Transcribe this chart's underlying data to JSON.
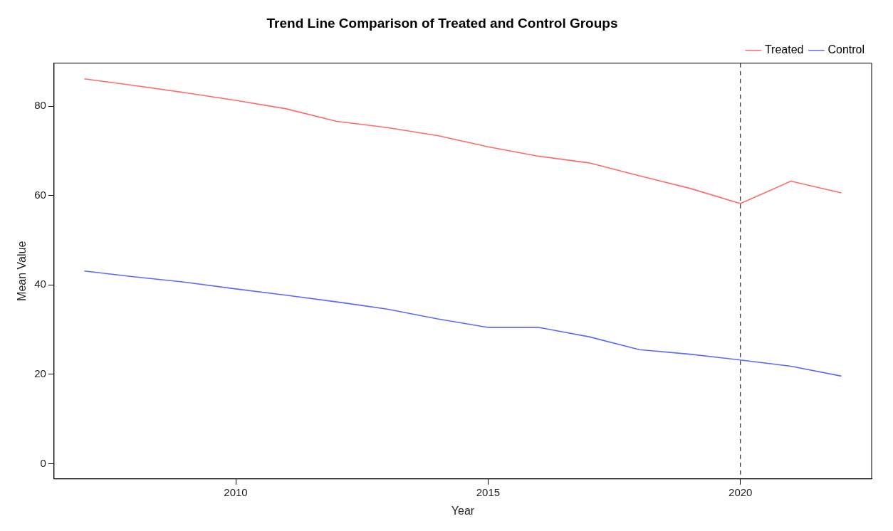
{
  "chart_data": {
    "type": "line",
    "title": "Trend Line Comparison of Treated and Control Groups",
    "xlabel": "Year",
    "ylabel": "Mean Value",
    "x": [
      2007,
      2008,
      2009,
      2010,
      2011,
      2012,
      2013,
      2014,
      2015,
      2016,
      2017,
      2018,
      2019,
      2020,
      2021,
      2022
    ],
    "series": [
      {
        "name": "Treated",
        "color": "#ff6a6a",
        "values": [
          86.1,
          84.6,
          83.0,
          81.3,
          79.4,
          76.6,
          75.2,
          73.4,
          70.9,
          68.8,
          67.3,
          64.4,
          61.6,
          58.2,
          63.2,
          60.6
        ]
      },
      {
        "name": "Control",
        "color": "#5a6aff",
        "values": [
          43.1,
          41.8,
          40.6,
          39.1,
          37.7,
          36.2,
          34.6,
          32.4,
          30.5,
          30.5,
          28.4,
          25.5,
          24.5,
          23.2,
          21.8,
          19.6
        ]
      }
    ],
    "xlim": [
      2006.4,
      2022.6
    ],
    "xticks": [
      2010,
      2015,
      2020
    ],
    "ylim": [
      -3.4,
      89.6
    ],
    "yticks": [
      0,
      20,
      40,
      60,
      80
    ],
    "ref_lines": [
      {
        "axis": "x",
        "value": 2020,
        "color": "#000000",
        "line_style": "dashed"
      }
    ],
    "legend": "top right",
    "grid": false,
    "marker": "none",
    "line_style": "solid"
  }
}
